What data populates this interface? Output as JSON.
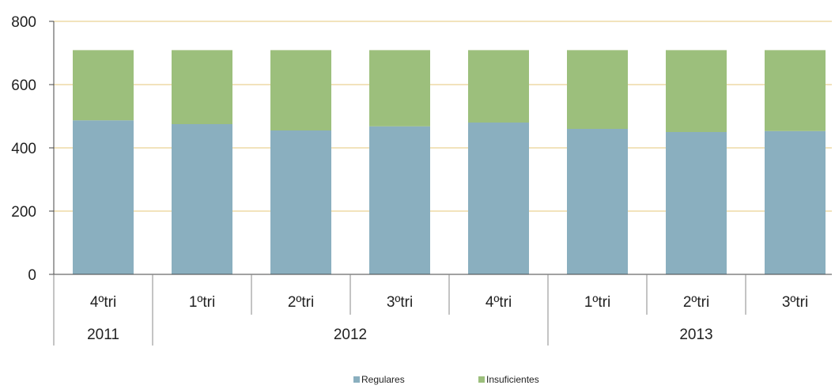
{
  "chart_data": {
    "type": "bar",
    "stacked": true,
    "categories": [
      "4ºtri",
      "1ºtri",
      "2ºtri",
      "3ºtri",
      "4ºtri",
      "1ºtri",
      "2ºtri",
      "3ºtri"
    ],
    "groups": [
      {
        "label": "2011",
        "count": 1
      },
      {
        "label": "2012",
        "count": 4
      },
      {
        "label": "2013",
        "count": 3
      }
    ],
    "series": [
      {
        "name": "Regulares",
        "color": "#8aafbf",
        "values": [
          487,
          475,
          455,
          468,
          480,
          460,
          450,
          453
        ]
      },
      {
        "name": "Insuficientes",
        "color": "#9cbf7c",
        "values": [
          222,
          234,
          254,
          241,
          229,
          249,
          259,
          256
        ]
      }
    ],
    "ylim": [
      0,
      800
    ],
    "yticks": [
      0,
      200,
      400,
      600,
      800
    ],
    "grid": true,
    "grid_color": "#e6c77a",
    "legend": "bottom"
  }
}
